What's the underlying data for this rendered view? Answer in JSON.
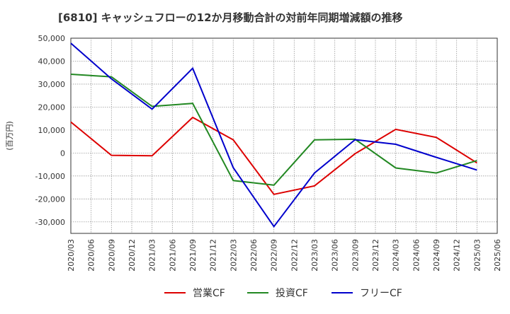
{
  "chart_data": {
    "type": "line",
    "title": "[6810]  キャッシュフローの12か月移動合計の対前年同期増減額の推移",
    "ylabel": "(百万円)",
    "xlabel": "",
    "ylim": [
      -35000,
      50000
    ],
    "yticks": [
      50000,
      40000,
      30000,
      20000,
      10000,
      0,
      -10000,
      -20000,
      -30000
    ],
    "ytick_labels": [
      "50,000",
      "40,000",
      "30,000",
      "20,000",
      "10,000",
      "0",
      "-10,000",
      "-20,000",
      "-30,000"
    ],
    "xtick_labels": [
      "2020/03",
      "2020/06",
      "2020/09",
      "2020/12",
      "2021/03",
      "2021/06",
      "2021/09",
      "2021/12",
      "2022/03",
      "2022/06",
      "2022/09",
      "2022/12",
      "2023/03",
      "2023/06",
      "2023/09",
      "2023/12",
      "2024/03",
      "2024/06",
      "2024/09",
      "2024/12",
      "2025/03",
      "2025/06"
    ],
    "grid": true,
    "legend_position": "bottom",
    "series": [
      {
        "name": "営業CF",
        "color": "#dd0000",
        "points": [
          {
            "x": "2020/03",
            "y": 13500
          },
          {
            "x": "2020/09",
            "y": -1000
          },
          {
            "x": "2021/03",
            "y": -1200
          },
          {
            "x": "2021/09",
            "y": 15500
          },
          {
            "x": "2022/03",
            "y": 5700
          },
          {
            "x": "2022/09",
            "y": -18000
          },
          {
            "x": "2023/03",
            "y": -14300
          },
          {
            "x": "2023/09",
            "y": -300
          },
          {
            "x": "2024/03",
            "y": 10300
          },
          {
            "x": "2024/09",
            "y": 6800
          },
          {
            "x": "2025/03",
            "y": -4300
          }
        ]
      },
      {
        "name": "投資CF",
        "color": "#228822",
        "points": [
          {
            "x": "2020/03",
            "y": 34300
          },
          {
            "x": "2020/09",
            "y": 33200
          },
          {
            "x": "2021/03",
            "y": 20300
          },
          {
            "x": "2021/09",
            "y": 21600
          },
          {
            "x": "2022/03",
            "y": -12000
          },
          {
            "x": "2022/09",
            "y": -14000
          },
          {
            "x": "2023/03",
            "y": 5700
          },
          {
            "x": "2023/09",
            "y": 6000
          },
          {
            "x": "2024/03",
            "y": -6500
          },
          {
            "x": "2024/09",
            "y": -8700
          },
          {
            "x": "2025/03",
            "y": -3300
          }
        ]
      },
      {
        "name": "フリーCF",
        "color": "#0000cc",
        "points": [
          {
            "x": "2020/03",
            "y": 47800
          },
          {
            "x": "2020/09",
            "y": 32300
          },
          {
            "x": "2021/03",
            "y": 19100
          },
          {
            "x": "2021/09",
            "y": 36900
          },
          {
            "x": "2022/03",
            "y": -6400
          },
          {
            "x": "2022/09",
            "y": -32000
          },
          {
            "x": "2023/03",
            "y": -8700
          },
          {
            "x": "2023/09",
            "y": 5800
          },
          {
            "x": "2024/03",
            "y": 3800
          },
          {
            "x": "2024/09",
            "y": -1900
          },
          {
            "x": "2025/03",
            "y": -7400
          }
        ]
      }
    ]
  }
}
